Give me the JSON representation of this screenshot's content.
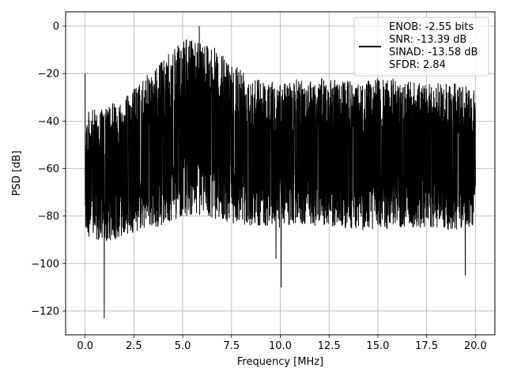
{
  "chart_data": {
    "type": "line",
    "xlabel": "Frequency [MHz]",
    "ylabel": "PSD [dB]",
    "xlim": [
      -1.0,
      21.0
    ],
    "ylim": [
      -130,
      6
    ],
    "x_ticks": [
      0.0,
      2.5,
      5.0,
      7.5,
      10.0,
      12.5,
      15.0,
      17.5,
      20.0
    ],
    "x_tick_labels": [
      "0.0",
      "2.5",
      "5.0",
      "7.5",
      "10.0",
      "12.5",
      "15.0",
      "17.5",
      "20.0"
    ],
    "y_ticks": [
      0,
      -20,
      -40,
      -60,
      -80,
      -100,
      -120
    ],
    "y_tick_labels": [
      "0",
      "−20",
      "−40",
      "−60",
      "−80",
      "−100",
      "−120"
    ],
    "grid": true,
    "legend_position": "top-right",
    "series": [
      {
        "color": "#000000",
        "legend_lines": [
          "ENOB: -2.55 bits",
          "SNR: -13.39 dB",
          "SINAD: -13.58 dB",
          "SFDR: 2.84"
        ],
        "x_range": [
          0.0,
          20.0
        ],
        "envelope": {
          "x": [
            0.0,
            1.0,
            2.0,
            3.0,
            4.0,
            5.0,
            6.0,
            7.0,
            8.0,
            9.0,
            10.0,
            11.0,
            12.0,
            13.0,
            14.0,
            15.0,
            16.0,
            17.0,
            18.0,
            19.0,
            20.0
          ],
          "upper": [
            -36,
            -34,
            -30,
            -22,
            -14,
            -6,
            -4,
            -12,
            -16,
            -22,
            -24,
            -22,
            -22,
            -22,
            -24,
            -22,
            -22,
            -24,
            -24,
            -24,
            -26
          ],
          "lower": [
            -88,
            -92,
            -88,
            -86,
            -84,
            -80,
            -80,
            -82,
            -84,
            -84,
            -85,
            -84,
            -84,
            -85,
            -86,
            -86,
            -85,
            -86,
            -86,
            -86,
            -84
          ]
        },
        "extremes": [
          {
            "x": 0.0,
            "y": -20
          },
          {
            "x": 0.98,
            "y": -123
          },
          {
            "x": 5.85,
            "y": 0
          },
          {
            "x": 9.78,
            "y": -98
          },
          {
            "x": 10.05,
            "y": -110
          },
          {
            "x": 19.48,
            "y": -105
          }
        ]
      }
    ]
  }
}
